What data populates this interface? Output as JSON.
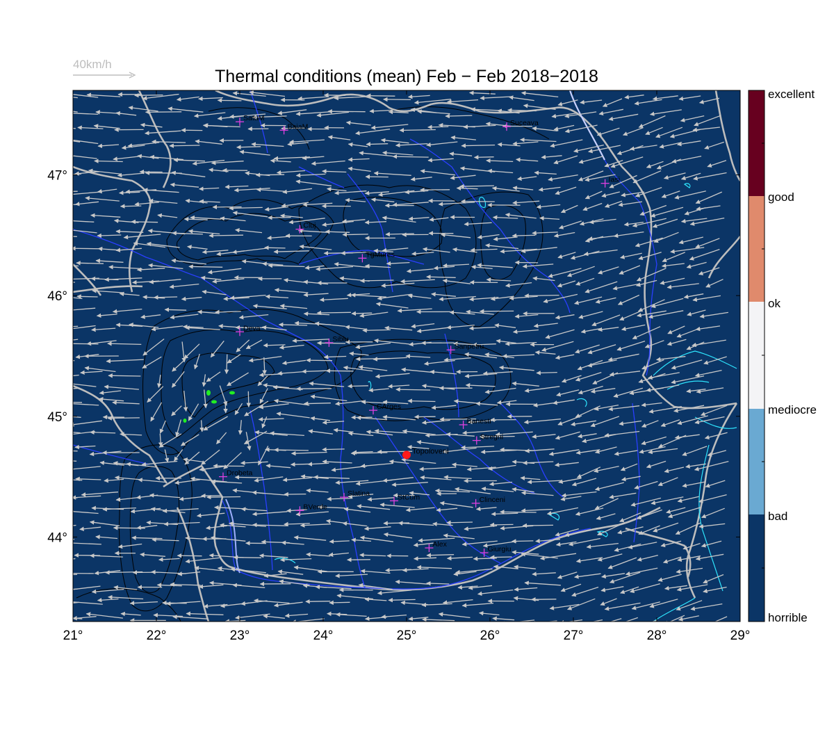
{
  "title": "Thermal conditions (mean) Feb − Feb  2018−2018",
  "wind_scale": {
    "label": "40km/h",
    "color": "#bfbfbf"
  },
  "map": {
    "background_color": "#0b3566",
    "lon_range": [
      21,
      29
    ],
    "lat_range": [
      43.3,
      47.7
    ],
    "lon_ticks": [
      21,
      22,
      23,
      24,
      25,
      26,
      27,
      28,
      29
    ],
    "lat_ticks": [
      44,
      45,
      46,
      47
    ],
    "lon_tick_labels": [
      "21°",
      "22°",
      "23°",
      "24°",
      "25°",
      "26°",
      "27°",
      "28°",
      "29°"
    ],
    "lat_tick_labels": [
      "44°",
      "45°",
      "46°",
      "47°"
    ],
    "cities": [
      {
        "name": "SatuM",
        "lon": 23.0,
        "lat": 47.44
      },
      {
        "name": "BaiaM",
        "lon": 23.53,
        "lat": 47.37
      },
      {
        "name": "Suceava",
        "lon": 26.2,
        "lat": 47.4
      },
      {
        "name": "Iasi",
        "lon": 27.38,
        "lat": 46.93
      },
      {
        "name": "Cluj",
        "lon": 23.72,
        "lat": 46.55
      },
      {
        "name": "TgMures",
        "lon": 24.47,
        "lat": 46.31
      },
      {
        "name": "Deva",
        "lon": 23.0,
        "lat": 45.7
      },
      {
        "name": "Sibiu",
        "lon": 24.07,
        "lat": 45.61
      },
      {
        "name": "Sanpetru",
        "lon": 25.53,
        "lat": 45.55
      },
      {
        "name": "CArges",
        "lon": 24.6,
        "lat": 45.05
      },
      {
        "name": "Banesti",
        "lon": 25.68,
        "lat": 44.93
      },
      {
        "name": "Stregni",
        "lon": 25.84,
        "lat": 44.8
      },
      {
        "name": "Drobeta",
        "lon": 22.8,
        "lat": 44.5
      },
      {
        "name": "Slatina",
        "lon": 24.25,
        "lat": 44.33
      },
      {
        "name": "StCum",
        "lon": 24.85,
        "lat": 44.3
      },
      {
        "name": "Clinceni",
        "lon": 25.83,
        "lat": 44.28
      },
      {
        "name": "BVerde",
        "lon": 23.72,
        "lat": 44.22
      },
      {
        "name": "Alex",
        "lon": 25.27,
        "lat": 43.91
      },
      {
        "name": "Giurgiu",
        "lon": 25.93,
        "lat": 43.87
      }
    ],
    "site": {
      "name": "Topoloveni",
      "lon": 25.0,
      "lat": 44.68,
      "color": "#ff1a1a"
    },
    "colors": {
      "city_marker": "#e040e0",
      "wind_arrow": "#c8c8c8",
      "border_major": "#bdbdbd",
      "river": "#2a3fff",
      "contour": "#000000",
      "lake": "#2ee6ff",
      "highlight": "#22ee22"
    }
  },
  "legend": {
    "categories": [
      {
        "label": "excellent",
        "color": "#67001f"
      },
      {
        "label": "good",
        "color": "#e08a6c"
      },
      {
        "label": "ok",
        "color": "#f4f4f6"
      },
      {
        "label": "mediocre",
        "color": "#6aa9d2"
      },
      {
        "label": "bad",
        "color": "#0b3566"
      },
      {
        "label": "horrible",
        "color": "#0b3566"
      }
    ]
  }
}
